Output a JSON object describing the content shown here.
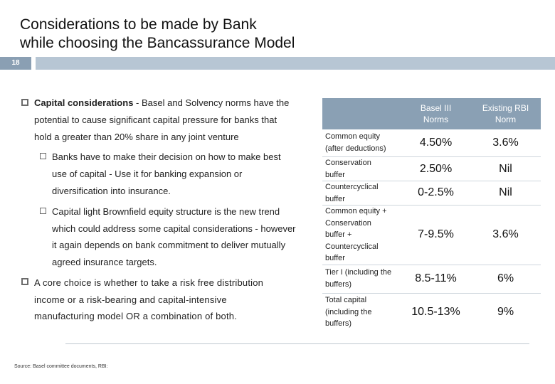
{
  "title": {
    "line1": "Considerations to be made by Bank",
    "line2": "while choosing the Bancassurance Model"
  },
  "page_number": "18",
  "left_text": {
    "b1_bold": "Capital considerations",
    "b1_rest": " - Basel and Solvency norms have the",
    "b1_line2": "potential to cause significant capital pressure for banks that",
    "b1_line3": "hold a greater than 20% share in any joint venture",
    "s1_line1": "Banks have to make their decision on how to make best",
    "s1_line2": "use of capital - Use it for banking expansion or",
    "s1_line3": "diversification into insurance.",
    "s2_line1": "Capital light Brownfield equity structure is the new trend",
    "s2_line2": "which could address some capital considerations - however",
    "s2_line3": "it again depends on bank commitment to deliver mutually",
    "s2_line4": "agreed insurance targets.",
    "b2_line1": "A core choice is whether to take a risk free distribution",
    "b2_line2": "income or a risk-bearing and capital-intensive",
    "b2_line3": "manufacturing model OR a combination of both."
  },
  "table": {
    "headers": [
      "Basel III Norms",
      "Existing RBI Norm"
    ],
    "header_lines": [
      [
        "Basel III",
        "Norms"
      ],
      [
        "Existing RBI",
        "Norm"
      ]
    ],
    "rows": [
      {
        "label_lines": [
          "Common equity",
          "(after deductions)"
        ],
        "basel": "4.50%",
        "rbi": "3.6%"
      },
      {
        "label_lines": [
          "Conservation",
          "buffer"
        ],
        "basel": "2.50%",
        "rbi": "Nil"
      },
      {
        "label_lines": [
          "Countercyclical",
          "buffer"
        ],
        "basel": "0-2.5%",
        "rbi": "Nil"
      },
      {
        "label_lines": [
          "Common equity +",
          "Conservation",
          "buffer +",
          "Countercyclical",
          "buffer"
        ],
        "basel": "7-9.5%",
        "rbi": "3.6%"
      },
      {
        "label_lines": [
          "Tier I (including the",
          "buffers)"
        ],
        "basel": "8.5-11%",
        "rbi": "6%"
      },
      {
        "label_lines": [
          "Total capital",
          "(including the",
          "buffers)"
        ],
        "basel": "10.5-13%",
        "rbi": "9%"
      }
    ]
  },
  "source": "Source: Basel committee documents, RBI:",
  "colors": {
    "header_bg": "#8aa0b4",
    "bar_bg": "#b7c6d4",
    "page_num_bg": "#8a9fb3"
  }
}
